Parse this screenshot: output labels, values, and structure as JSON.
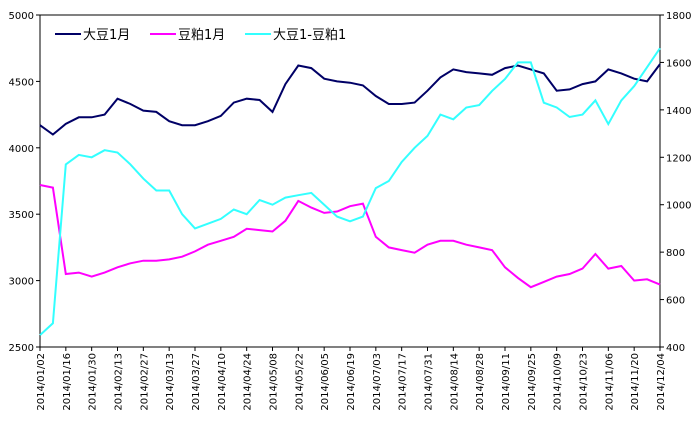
{
  "chart_data": {
    "type": "line",
    "x": [
      "2014/01/02",
      null,
      "2014/01/16",
      null,
      "2014/01/30",
      null,
      "2014/02/13",
      null,
      "2014/02/27",
      null,
      "2014/03/13",
      null,
      "2014/03/27",
      null,
      "2014/04/10",
      null,
      "2014/04/24",
      null,
      "2014/05/08",
      null,
      "2014/05/22",
      null,
      "2014/06/05",
      null,
      "2014/06/19",
      null,
      "2014/07/03",
      null,
      "2014/07/17",
      null,
      "2014/07/31",
      null,
      "2014/08/14",
      null,
      "2014/08/28",
      null,
      "2014/09/11",
      null,
      "2014/09/25",
      null,
      "2014/10/09",
      null,
      "2014/10/23",
      null,
      "2014/11/06",
      null,
      "2014/11/20",
      null,
      "2014/12/04"
    ],
    "series": [
      {
        "name": "大豆1月",
        "color": "#000066",
        "values": [
          4170,
          4100,
          4180,
          4230,
          4230,
          4250,
          4370,
          4330,
          4280,
          4270,
          4200,
          4170,
          4170,
          4200,
          4240,
          4340,
          4370,
          4360,
          4270,
          4480,
          4620,
          4600,
          4520,
          4500,
          4490,
          4470,
          4390,
          4330,
          4330,
          4340,
          4430,
          4530,
          4590,
          4570,
          4560,
          4550,
          4600,
          4620,
          4590,
          4560,
          4430,
          4440,
          4480,
          4500,
          4590,
          4560,
          4520,
          4500,
          4630
        ]
      },
      {
        "name": "豆粕1月",
        "color": "#ff00ff",
        "values": [
          3720,
          3700,
          3050,
          3060,
          3030,
          3060,
          3100,
          3130,
          3150,
          3150,
          3160,
          3180,
          3220,
          3270,
          3300,
          3330,
          3390,
          3380,
          3370,
          3450,
          3600,
          3550,
          3510,
          3520,
          3560,
          3580,
          3330,
          3250,
          3230,
          3210,
          3270,
          3300,
          3300,
          3270,
          3250,
          3230,
          3100,
          3020,
          2950,
          2990,
          3030,
          3050,
          3090,
          3200,
          3090,
          3110,
          3000,
          3010,
          2970
        ]
      },
      {
        "name": "大豆1-豆粕1",
        "color": "#33ffff",
        "axis": "y2",
        "values": [
          450,
          500,
          1170,
          1210,
          1200,
          1230,
          1220,
          1170,
          1110,
          1060,
          1060,
          960,
          900,
          920,
          940,
          980,
          960,
          1020,
          1000,
          1030,
          1040,
          1050,
          1000,
          950,
          930,
          950,
          1070,
          1100,
          1180,
          1240,
          1290,
          1380,
          1360,
          1410,
          1420,
          1480,
          1530,
          1600,
          1600,
          1430,
          1410,
          1370,
          1380,
          1440,
          1340,
          1440,
          1500,
          1580,
          1660
        ]
      }
    ],
    "ylim": [
      2500,
      5000
    ],
    "yticks": [
      2500,
      3000,
      3500,
      4000,
      4500,
      5000
    ],
    "y2lim": [
      400,
      1800
    ],
    "y2ticks": [
      400,
      600,
      800,
      1000,
      1200,
      1400,
      1600,
      1800
    ],
    "legend": "top-left"
  }
}
